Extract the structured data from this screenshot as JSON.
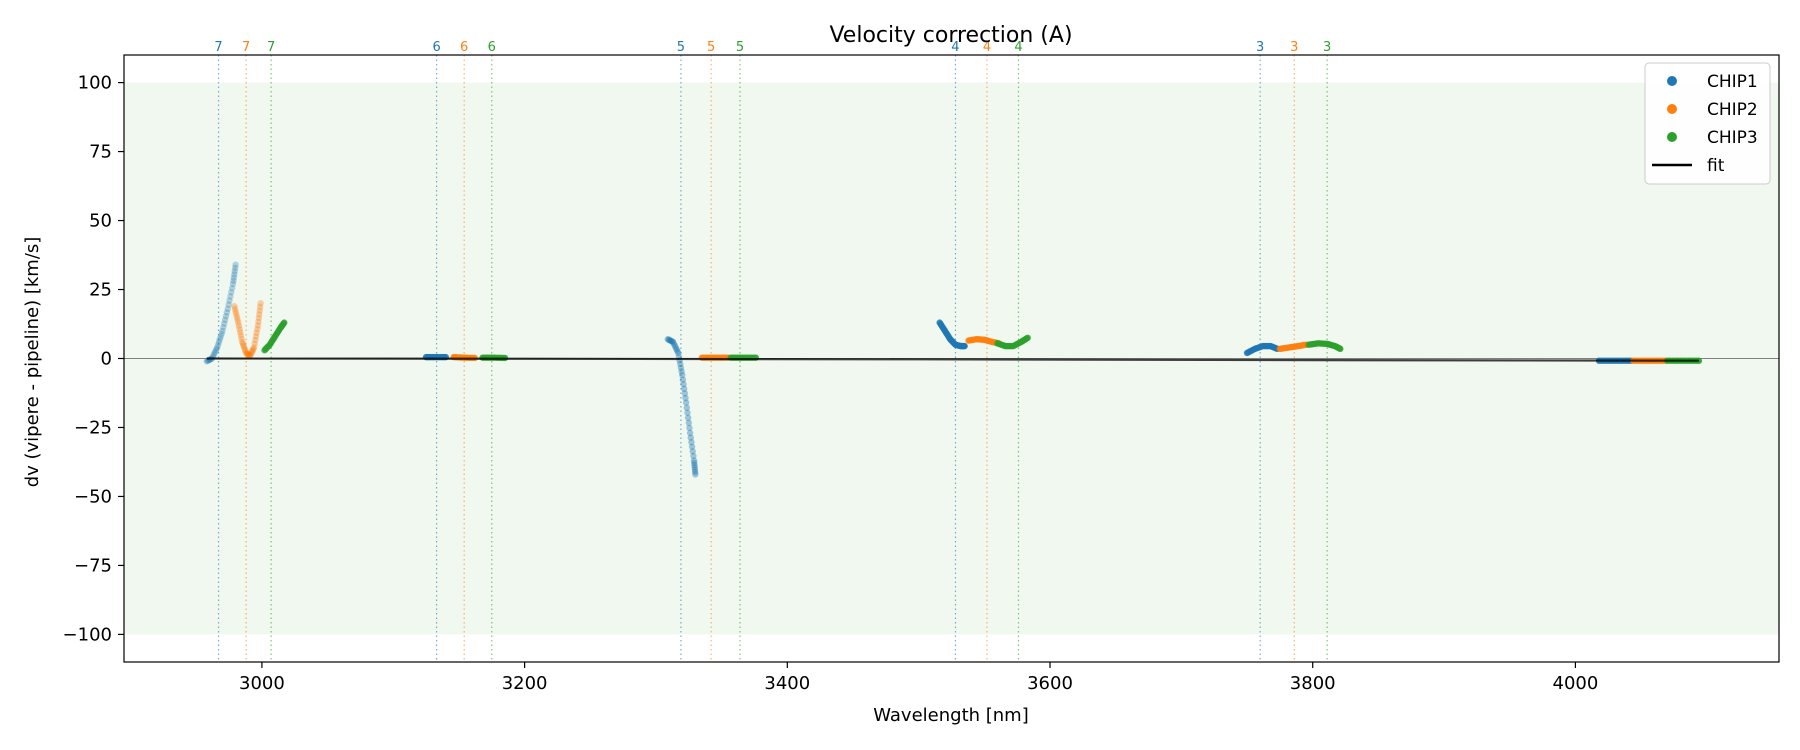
{
  "chart_data": {
    "type": "scatter",
    "title": "Velocity correction (A)",
    "xlabel": "Wavelength [nm]",
    "ylabel": "dv (vipere - pipeline) [km/s]",
    "xlim": [
      2895,
      4155
    ],
    "ylim": [
      -110,
      110
    ],
    "xticks": [
      3000,
      3200,
      3400,
      3600,
      3800,
      4000
    ],
    "yticks": [
      100,
      75,
      50,
      25,
      0,
      -25,
      -50,
      -75,
      -100
    ],
    "xtick_labels": [
      "3000",
      "3200",
      "3400",
      "3600",
      "3800",
      "4000"
    ],
    "ytick_labels": [
      "100",
      "75",
      "50",
      "25",
      "0",
      "−25",
      "−50",
      "−75",
      "−100"
    ],
    "shaded_band": [
      -100,
      100
    ],
    "grid": false,
    "legend_position": "top-right",
    "legend": [
      {
        "label": "CHIP1",
        "kind": "marker",
        "color": "#1f77b4"
      },
      {
        "label": "CHIP2",
        "kind": "marker",
        "color": "#ff7f0e"
      },
      {
        "label": "CHIP3",
        "kind": "marker",
        "color": "#2ca02c"
      },
      {
        "label": "fit",
        "kind": "line",
        "color": "#000000"
      }
    ],
    "order_markers": [
      {
        "x": 2967,
        "label": "7",
        "chip": "CHIP1"
      },
      {
        "x": 2988,
        "label": "7",
        "chip": "CHIP2"
      },
      {
        "x": 3007,
        "label": "7",
        "chip": "CHIP3"
      },
      {
        "x": 3133,
        "label": "6",
        "chip": "CHIP1"
      },
      {
        "x": 3154,
        "label": "6",
        "chip": "CHIP2"
      },
      {
        "x": 3175,
        "label": "6",
        "chip": "CHIP3"
      },
      {
        "x": 3319,
        "label": "5",
        "chip": "CHIP1"
      },
      {
        "x": 3342,
        "label": "5",
        "chip": "CHIP2"
      },
      {
        "x": 3364,
        "label": "5",
        "chip": "CHIP3"
      },
      {
        "x": 3528,
        "label": "4",
        "chip": "CHIP1"
      },
      {
        "x": 3552,
        "label": "4",
        "chip": "CHIP2"
      },
      {
        "x": 3576,
        "label": "4",
        "chip": "CHIP3"
      },
      {
        "x": 3760,
        "label": "3",
        "chip": "CHIP1"
      },
      {
        "x": 3786,
        "label": "3",
        "chip": "CHIP2"
      },
      {
        "x": 3811,
        "label": "3",
        "chip": "CHIP3"
      }
    ],
    "series": [
      {
        "name": "CHIP1",
        "color": "#1f77b4",
        "segments": [
          {
            "opacity": 0.3,
            "points": [
              [
                2958,
                -1
              ],
              [
                2962,
                0
              ],
              [
                2966,
                4
              ],
              [
                2970,
                10
              ],
              [
                2974,
                18
              ],
              [
                2978,
                27
              ],
              [
                2980,
                34
              ]
            ]
          },
          {
            "opacity": 0.9,
            "points": [
              [
                3125,
                0.5
              ],
              [
                3132,
                0.5
              ],
              [
                3140,
                0.5
              ]
            ]
          },
          {
            "opacity": 0.4,
            "points": [
              [
                3309,
                7
              ],
              [
                3313,
                6
              ],
              [
                3317,
                2
              ],
              [
                3320,
                -6
              ],
              [
                3323,
                -16
              ],
              [
                3326,
                -27
              ],
              [
                3329,
                -37
              ],
              [
                3330,
                -42
              ]
            ]
          },
          {
            "opacity": 0.85,
            "points": [
              [
                3516,
                13
              ],
              [
                3520,
                10
              ],
              [
                3524,
                7
              ],
              [
                3528,
                5
              ],
              [
                3532,
                4.5
              ],
              [
                3535,
                4.5
              ]
            ]
          },
          {
            "opacity": 0.85,
            "points": [
              [
                3750,
                2
              ],
              [
                3756,
                3.5
              ],
              [
                3762,
                4.5
              ],
              [
                3768,
                4.5
              ],
              [
                3773,
                3.5
              ]
            ]
          },
          {
            "opacity": 0.95,
            "points": [
              [
                4018,
                -0.8
              ],
              [
                4030,
                -0.8
              ],
              [
                4042,
                -0.8
              ]
            ]
          }
        ]
      },
      {
        "name": "CHIP2",
        "color": "#ff7f0e",
        "segments": [
          {
            "opacity": 0.35,
            "points": [
              [
                2979,
                19
              ],
              [
                2982,
                13
              ],
              [
                2985,
                6
              ],
              [
                2988,
                2
              ],
              [
                2991,
                1
              ],
              [
                2994,
                4
              ],
              [
                2997,
                12
              ],
              [
                2999,
                20
              ]
            ]
          },
          {
            "opacity": 0.9,
            "points": [
              [
                3146,
                0.5
              ],
              [
                3154,
                0.3
              ],
              [
                3162,
                0.2
              ]
            ]
          },
          {
            "opacity": 0.9,
            "points": [
              [
                3335,
                0.3
              ],
              [
                3345,
                0.3
              ],
              [
                3355,
                0.3
              ]
            ]
          },
          {
            "opacity": 0.85,
            "points": [
              [
                3538,
                6.5
              ],
              [
                3544,
                7
              ],
              [
                3550,
                6.8
              ],
              [
                3556,
                6
              ],
              [
                3561,
                5.5
              ]
            ]
          },
          {
            "opacity": 0.85,
            "points": [
              [
                3775,
                3.5
              ],
              [
                3782,
                4
              ],
              [
                3789,
                4.5
              ],
              [
                3795,
                5
              ]
            ]
          },
          {
            "opacity": 0.95,
            "points": [
              [
                4044,
                -0.8
              ],
              [
                4056,
                -0.8
              ],
              [
                4068,
                -0.8
              ]
            ]
          }
        ]
      },
      {
        "name": "CHIP3",
        "color": "#2ca02c",
        "segments": [
          {
            "opacity": 0.8,
            "points": [
              [
                3002,
                3
              ],
              [
                3006,
                5
              ],
              [
                3010,
                8
              ],
              [
                3014,
                11
              ],
              [
                3017,
                13
              ]
            ]
          },
          {
            "opacity": 0.9,
            "points": [
              [
                3168,
                0.3
              ],
              [
                3176,
                0.3
              ],
              [
                3185,
                0.2
              ]
            ]
          },
          {
            "opacity": 0.9,
            "points": [
              [
                3357,
                0.3
              ],
              [
                3366,
                0.3
              ],
              [
                3376,
                0.3
              ]
            ]
          },
          {
            "opacity": 0.85,
            "points": [
              [
                3560,
                5.5
              ],
              [
                3566,
                4.5
              ],
              [
                3572,
                4.5
              ],
              [
                3578,
                6
              ],
              [
                3583,
                7.5
              ]
            ]
          },
          {
            "opacity": 0.85,
            "points": [
              [
                3797,
                5
              ],
              [
                3804,
                5.5
              ],
              [
                3811,
                5.3
              ],
              [
                3817,
                4.5
              ],
              [
                3821,
                3.5
              ]
            ]
          },
          {
            "opacity": 0.95,
            "points": [
              [
                4070,
                -0.8
              ],
              [
                4082,
                -0.8
              ],
              [
                4094,
                -0.8
              ]
            ]
          }
        ]
      }
    ],
    "fit": {
      "name": "fit",
      "color": "#000000",
      "points": [
        [
          2958,
          0
        ],
        [
          3200,
          -0.1
        ],
        [
          3500,
          -0.3
        ],
        [
          3800,
          -0.6
        ],
        [
          4094,
          -0.8
        ]
      ]
    }
  }
}
